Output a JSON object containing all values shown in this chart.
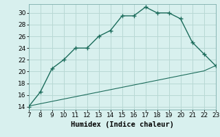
{
  "xlabel": "Humidex (Indice chaleur)",
  "bg_color": "#d8f0ee",
  "line_color": "#1a6b5a",
  "grid_color": "#b8d8d4",
  "curve1_x": [
    7,
    8,
    9,
    10,
    11,
    12,
    13,
    14,
    15,
    16,
    17,
    18,
    19,
    20,
    21,
    22,
    23
  ],
  "curve1_y": [
    14.0,
    16.5,
    20.5,
    22.0,
    24.0,
    24.0,
    26.0,
    27.0,
    29.5,
    29.5,
    31.0,
    30.0,
    30.0,
    29.0,
    25.0,
    23.0,
    21.0
  ],
  "curve2_x": [
    7,
    8,
    9,
    10,
    11,
    12,
    13,
    14,
    15,
    16,
    17,
    18,
    19,
    20,
    21,
    22,
    23
  ],
  "curve2_y": [
    14.1,
    14.5,
    14.9,
    15.3,
    15.7,
    16.1,
    16.5,
    16.9,
    17.3,
    17.7,
    18.1,
    18.5,
    18.9,
    19.3,
    19.7,
    20.1,
    21.0
  ],
  "xlim": [
    7,
    23
  ],
  "ylim": [
    13.5,
    31.5
  ],
  "xticks": [
    7,
    8,
    9,
    10,
    11,
    12,
    13,
    14,
    15,
    16,
    17,
    18,
    19,
    20,
    21,
    22,
    23
  ],
  "yticks": [
    14,
    16,
    18,
    20,
    22,
    24,
    26,
    28,
    30
  ],
  "tick_fontsize": 6.5,
  "label_fontsize": 7.5
}
